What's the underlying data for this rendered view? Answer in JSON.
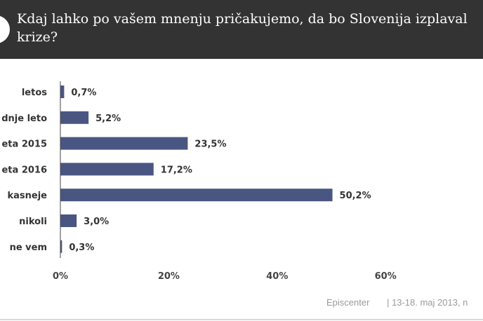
{
  "header": {
    "title_line1": "Kdaj lahko po vašem mnenju pričakujemo, da bo Slovenija izplaval",
    "title_line2": "krize?"
  },
  "chart_data": {
    "type": "bar",
    "orientation": "horizontal",
    "categories": [
      "letos",
      "dnje leto",
      "eta 2015",
      "eta 2016",
      "kasneje",
      "nikoli",
      "ne vem"
    ],
    "values": [
      0.7,
      5.2,
      23.5,
      17.2,
      50.2,
      3.0,
      0.3
    ],
    "value_labels": [
      "0,7%",
      "5,2%",
      "23,5%",
      "17,2%",
      "50,2%",
      "3,0%",
      "0,3%"
    ],
    "x_ticks": [
      0,
      20,
      40,
      60
    ],
    "x_tick_labels": [
      "0%",
      "20%",
      "40%",
      "60%"
    ],
    "xlim": [
      0,
      80
    ],
    "bar_color": "#4a5682",
    "grid": false,
    "title": "",
    "xlabel": "",
    "ylabel": ""
  },
  "footer": {
    "source": "Episcenter",
    "dates": "| 13-18.  maj 2013, n"
  }
}
